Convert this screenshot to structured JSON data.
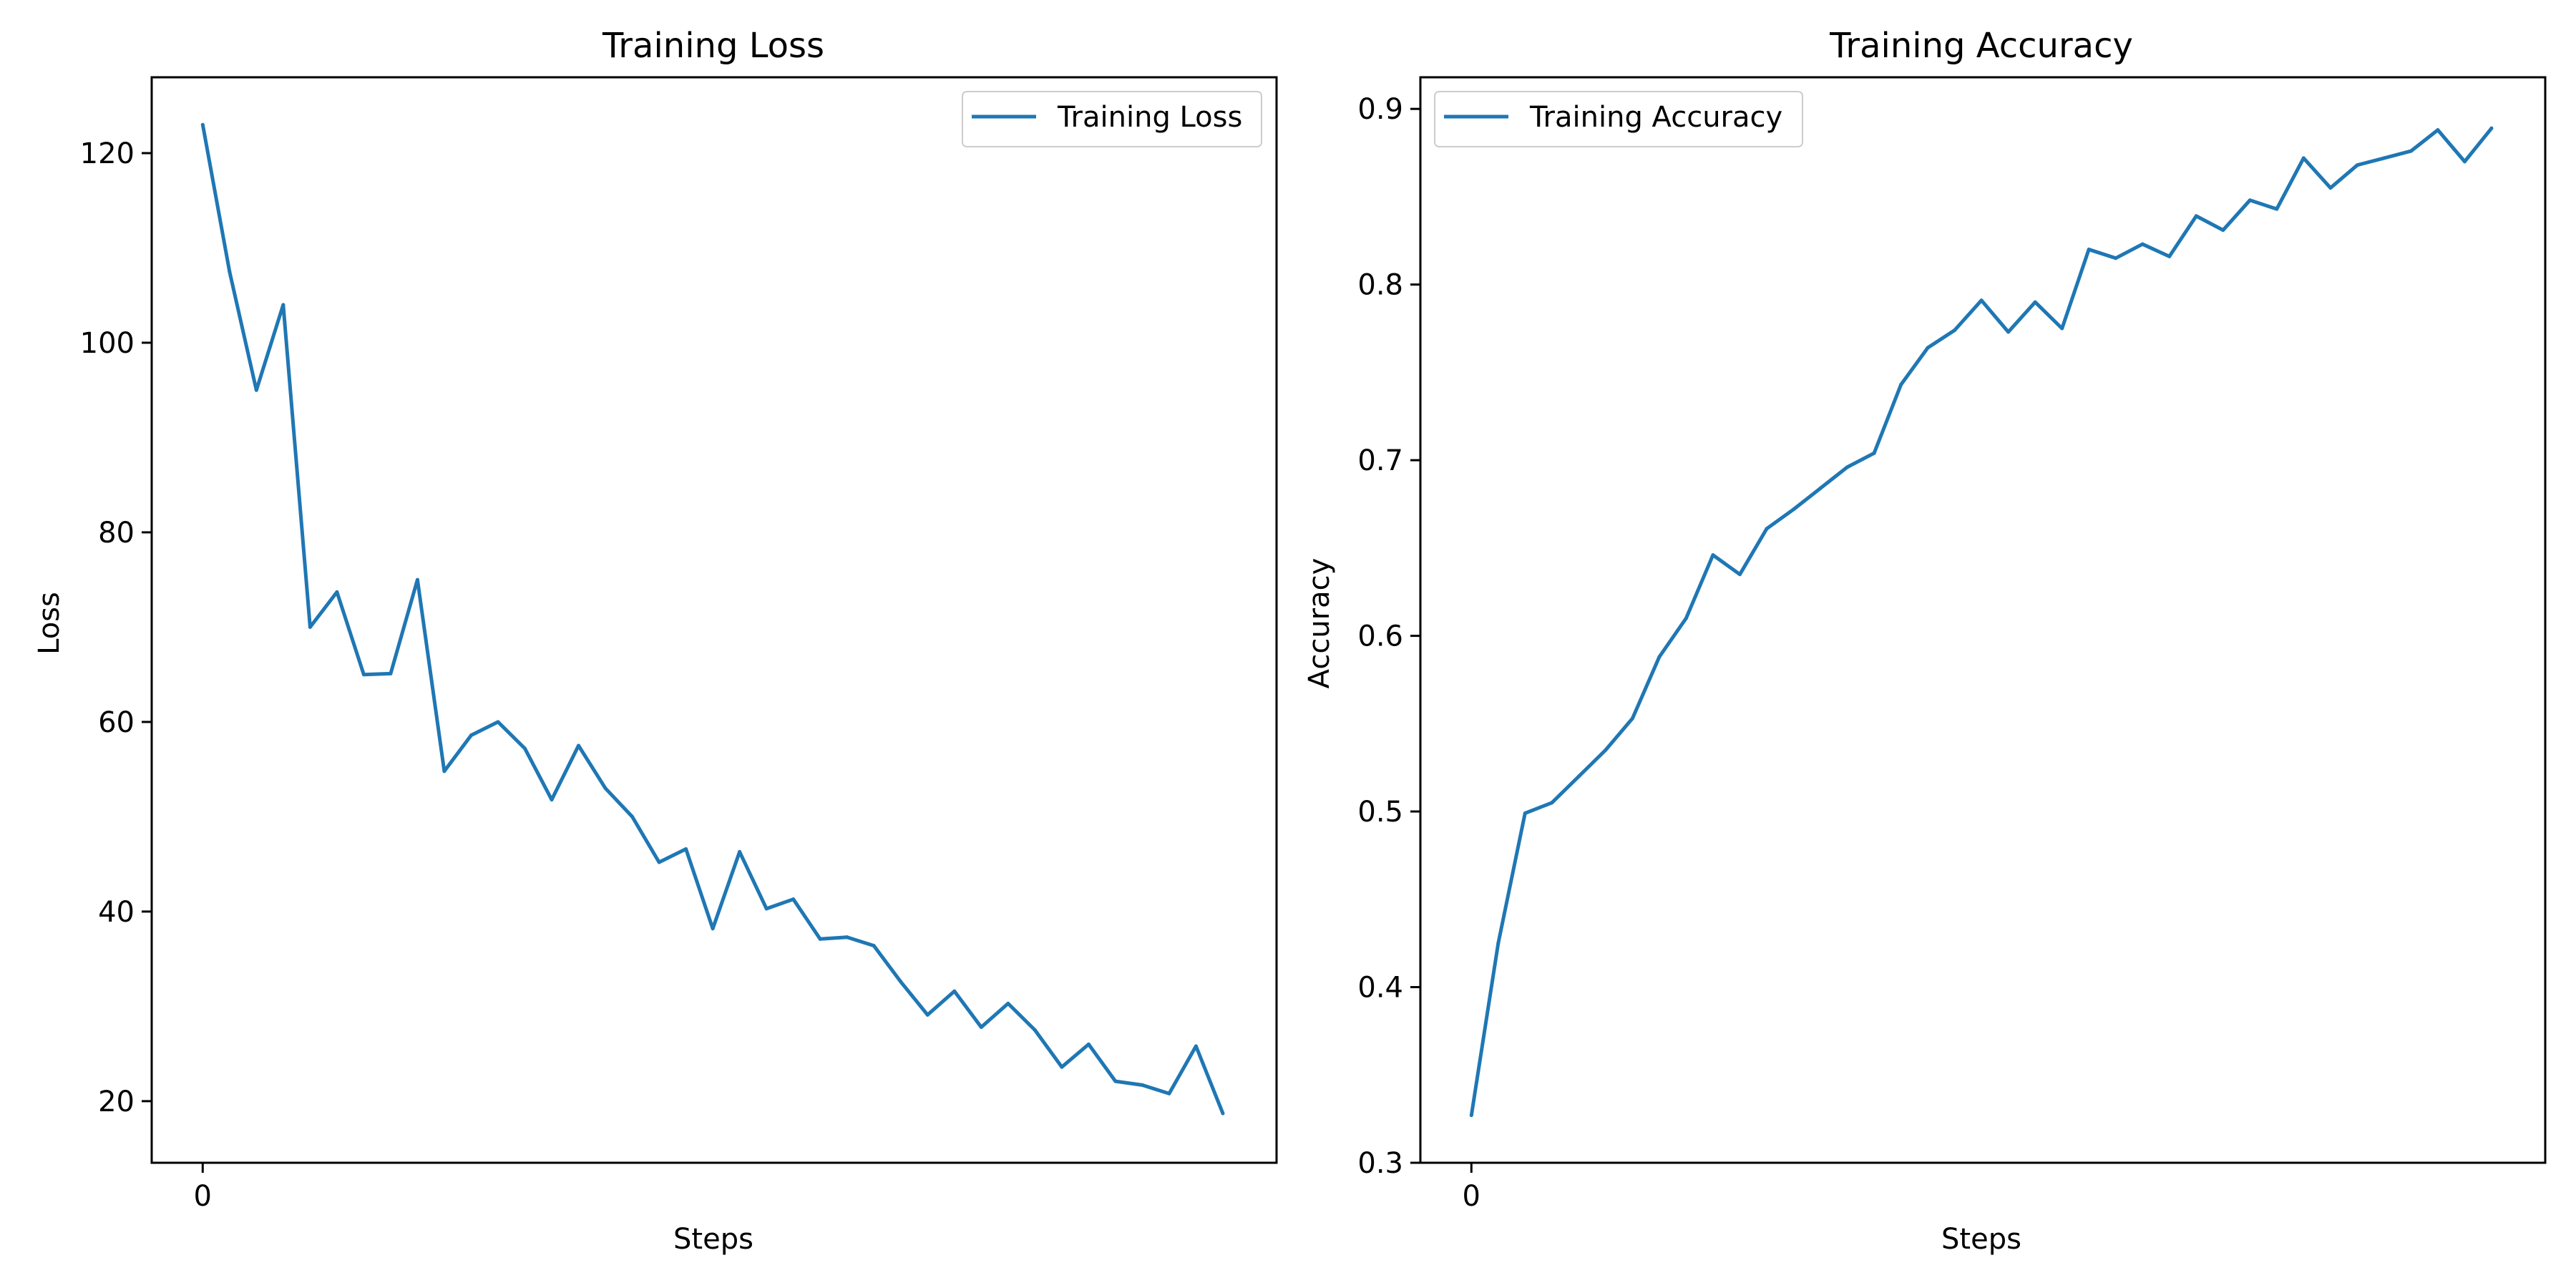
{
  "chart_data": [
    {
      "type": "line",
      "title": "Training Loss",
      "xlabel": "Steps",
      "ylabel": "Loss",
      "x_ticks": [
        0
      ],
      "xlim": [
        -1.9,
        40.0
      ],
      "ylim": [
        13.5,
        128.0
      ],
      "y_ticks": [
        20,
        40,
        60,
        80,
        100,
        120
      ],
      "legend_position": "top-right",
      "line_color": "#1f77b4",
      "series": [
        {
          "name": "Training Loss",
          "x": [
            0,
            1,
            2,
            3,
            4,
            5,
            6,
            7,
            8,
            9,
            10,
            11,
            12,
            13,
            14,
            15,
            16,
            17,
            18,
            19,
            20,
            21,
            22,
            23,
            24,
            25,
            26,
            27,
            28,
            29,
            30,
            31,
            32,
            33,
            34,
            35,
            36,
            37,
            38
          ],
          "values": [
            123.0,
            107.5,
            95.0,
            104.0,
            70.0,
            73.7,
            65.0,
            65.1,
            75.0,
            54.8,
            58.6,
            60.0,
            57.2,
            51.8,
            57.5,
            53.0,
            50.0,
            45.2,
            46.6,
            38.2,
            46.3,
            40.3,
            41.3,
            37.1,
            37.3,
            36.4,
            32.6,
            29.1,
            31.6,
            27.8,
            30.3,
            27.5,
            23.6,
            26.0,
            22.1,
            21.7,
            20.8,
            25.8,
            18.7
          ]
        }
      ]
    },
    {
      "type": "line",
      "title": "Training Accuracy",
      "xlabel": "Steps",
      "ylabel": "Accuracy",
      "x_ticks": [
        0
      ],
      "xlim": [
        -1.9,
        40.0
      ],
      "ylim": [
        0.3,
        0.918
      ],
      "y_ticks": [
        0.3,
        0.4,
        0.5,
        0.6,
        0.7,
        0.8,
        0.9
      ],
      "legend_position": "top-left",
      "line_color": "#1f77b4",
      "series": [
        {
          "name": "Training Accuracy",
          "x": [
            0,
            1,
            2,
            3,
            4,
            5,
            6,
            7,
            8,
            9,
            10,
            11,
            12,
            13,
            14,
            15,
            16,
            17,
            18,
            19,
            20,
            21,
            22,
            23,
            24,
            25,
            26,
            27,
            28,
            29,
            30,
            31,
            32,
            33,
            34,
            35,
            36,
            37,
            38
          ],
          "values": [
            0.327,
            0.425,
            0.499,
            0.505,
            0.52,
            0.535,
            0.553,
            0.588,
            0.61,
            0.646,
            0.635,
            0.661,
            0.672,
            0.684,
            0.696,
            0.704,
            0.743,
            0.764,
            0.774,
            0.791,
            0.773,
            0.79,
            0.775,
            0.82,
            0.815,
            0.823,
            0.816,
            0.839,
            0.831,
            0.848,
            0.843,
            0.872,
            0.855,
            0.868,
            0.872,
            0.876,
            0.888,
            0.87,
            0.889
          ]
        }
      ]
    }
  ]
}
